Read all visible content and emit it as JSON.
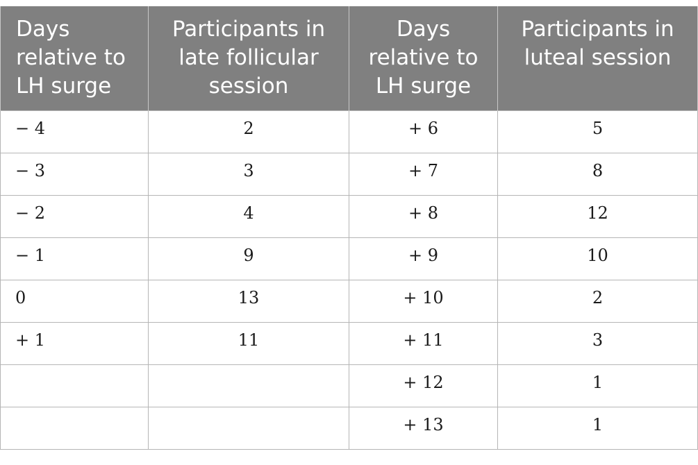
{
  "headers": [
    [
      "Days",
      "relative to",
      "LH surge"
    ],
    [
      "Participants in",
      "late follicular",
      "session"
    ],
    [
      "Days",
      "relative to",
      "LH surge"
    ],
    [
      "Participants in",
      "luteal session"
    ]
  ],
  "rows": [
    [
      "− 4",
      "2",
      "+ 6",
      "5"
    ],
    [
      "− 3",
      "3",
      "+ 7",
      "8"
    ],
    [
      "− 2",
      "4",
      "+ 8",
      "12"
    ],
    [
      "− 1",
      "9",
      "+ 9",
      "10"
    ],
    [
      "0",
      "13",
      "+ 10",
      "2"
    ],
    [
      "+ 1",
      "11",
      "+ 11",
      "3"
    ],
    [
      "",
      "",
      "+ 12",
      "1"
    ],
    [
      "",
      "",
      "+ 13",
      "1"
    ]
  ],
  "colors": {
    "header_background": "#808080",
    "header_text": "#ffffff",
    "grid_line": "#b5b5b5"
  }
}
